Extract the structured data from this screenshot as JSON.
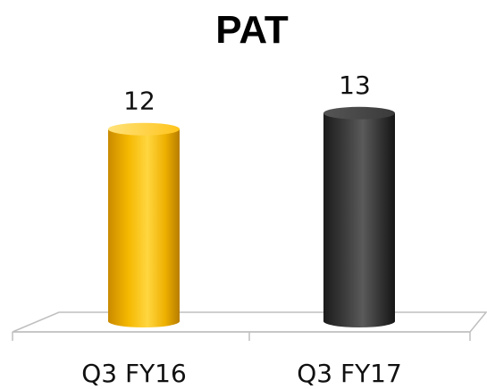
{
  "chart_data": {
    "type": "bar",
    "title": "PAT",
    "categories": [
      "Q3 FY16",
      "Q3 FY17"
    ],
    "values": [
      12,
      13
    ],
    "data_labels": [
      "12",
      "13"
    ],
    "bar_colors": [
      "#f2b400",
      "#3a3a3a"
    ],
    "ylim": [
      0,
      16.5
    ],
    "grid": false,
    "legend": "none",
    "style": "3d-cylinder"
  }
}
